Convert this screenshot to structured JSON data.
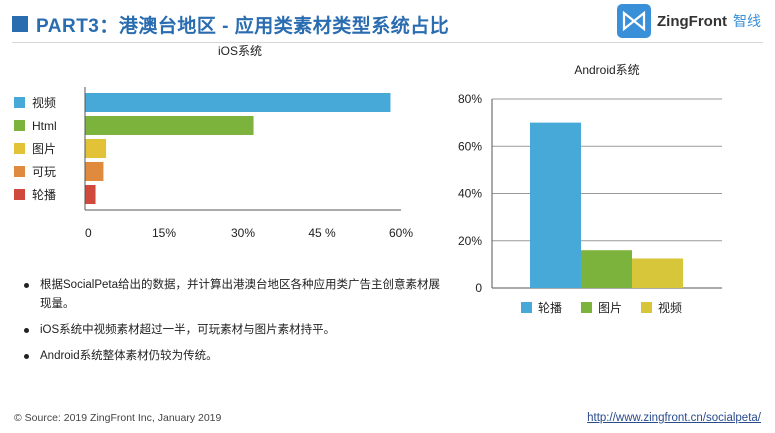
{
  "header": {
    "title": "PART3：港澳台地区 - 应用类素材类型系统占比",
    "logo_name": "ZingFront",
    "logo_cn": "智线"
  },
  "colors": {
    "blue": "#46a9d8",
    "green": "#7cb33d",
    "yellow": "#e2c236",
    "orange": "#e08a3e",
    "red": "#cf4a3c",
    "android_yellow": "#d7c53a",
    "title_blue": "#2a6cb0"
  },
  "chart_data": [
    {
      "type": "bar",
      "orientation": "horizontal",
      "title": "iOS系统",
      "categories": [
        "视频",
        "Html",
        "图片",
        "可玩",
        "轮播"
      ],
      "values": [
        58,
        32,
        4,
        3.5,
        2
      ],
      "xlim": [
        0,
        60
      ],
      "ticks": [
        "0",
        "15%",
        "30%",
        "45 %",
        "60%"
      ],
      "legend": "left"
    },
    {
      "type": "bar",
      "title": "Android系统",
      "categories": [
        "轮播",
        "图片",
        "视频"
      ],
      "values": [
        70,
        16,
        12.5
      ],
      "ylim": [
        0,
        80
      ],
      "ticks": [
        "0",
        "20%",
        "40%",
        "60%",
        "80%"
      ],
      "legend": "bottom",
      "grid": true
    }
  ],
  "bullets": [
    "根据SocialPeta给出的数据，并计算出港澳台地区各种应用类广告主创意素材展现量。",
    "iOS系统中视频素材超过一半，可玩素材与图片素材持平。",
    "Android系统整体素材仍较为传统。"
  ],
  "footer": {
    "source": "© Source: 2019 ZingFront Inc, January 2019",
    "url": "http://www.zingfront.cn/socialpeta/"
  }
}
